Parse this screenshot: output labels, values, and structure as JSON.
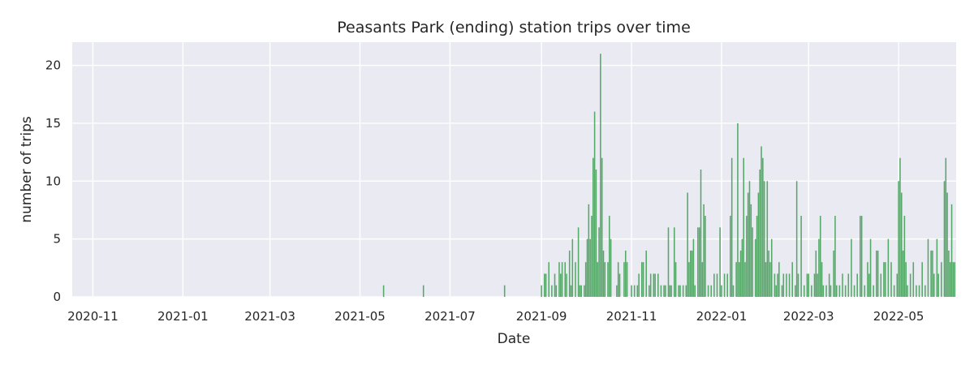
{
  "chart_data": {
    "type": "bar",
    "title": "Peasants Park (ending) station trips over time",
    "xlabel": "Date",
    "ylabel": "number of trips",
    "xlim": [
      "2020-10-18",
      "2022-06-09"
    ],
    "ylim": [
      0,
      22
    ],
    "grid": true,
    "legend": "none",
    "colors": {
      "bar": "#55a868",
      "plot_bg": "#eaeaf2",
      "grid": "#ffffff",
      "text": "#262626"
    },
    "x_ticks": [
      "2020-11-01",
      "2021-01-01",
      "2021-03-01",
      "2021-05-01",
      "2021-07-01",
      "2021-09-01",
      "2021-11-01",
      "2022-01-01",
      "2022-03-01",
      "2022-05-01"
    ],
    "x_tick_labels": [
      "2020-11",
      "2021-01",
      "2021-03",
      "2021-05",
      "2021-07",
      "2021-09",
      "2021-11",
      "2022-01",
      "2022-03",
      "2022-05"
    ],
    "y_ticks": [
      0,
      5,
      10,
      15,
      20
    ],
    "y_tick_labels": [
      "0",
      "5",
      "10",
      "15",
      "20"
    ],
    "series": [
      {
        "points": [
          [
            "2021-05-17",
            1
          ],
          [
            "2021-06-13",
            1
          ],
          [
            "2021-08-07",
            1
          ],
          [
            "2021-09-01",
            1
          ],
          [
            "2021-09-03",
            2
          ],
          [
            "2021-09-04",
            2
          ],
          [
            "2021-09-06",
            3
          ],
          [
            "2021-09-08",
            1
          ],
          [
            "2021-09-10",
            2
          ],
          [
            "2021-09-11",
            1
          ],
          [
            "2021-09-13",
            3
          ],
          [
            "2021-09-14",
            2
          ],
          [
            "2021-09-15",
            3
          ],
          [
            "2021-09-17",
            3
          ],
          [
            "2021-09-18",
            2
          ],
          [
            "2021-09-20",
            4
          ],
          [
            "2021-09-21",
            1
          ],
          [
            "2021-09-22",
            5
          ],
          [
            "2021-09-24",
            3
          ],
          [
            "2021-09-26",
            6
          ],
          [
            "2021-09-27",
            1
          ],
          [
            "2021-09-28",
            1
          ],
          [
            "2021-09-30",
            1
          ],
          [
            "2021-10-01",
            3
          ],
          [
            "2021-10-02",
            5
          ],
          [
            "2021-10-03",
            8
          ],
          [
            "2021-10-04",
            5
          ],
          [
            "2021-10-05",
            7
          ],
          [
            "2021-10-06",
            12
          ],
          [
            "2021-10-07",
            16
          ],
          [
            "2021-10-08",
            11
          ],
          [
            "2021-10-09",
            3
          ],
          [
            "2021-10-10",
            6
          ],
          [
            "2021-10-11",
            21
          ],
          [
            "2021-10-12",
            12
          ],
          [
            "2021-10-13",
            4
          ],
          [
            "2021-10-14",
            3
          ],
          [
            "2021-10-16",
            3
          ],
          [
            "2021-10-17",
            7
          ],
          [
            "2021-10-18",
            5
          ],
          [
            "2021-10-22",
            1
          ],
          [
            "2021-10-23",
            3
          ],
          [
            "2021-10-24",
            2
          ],
          [
            "2021-10-27",
            3
          ],
          [
            "2021-10-28",
            4
          ],
          [
            "2021-10-29",
            3
          ],
          [
            "2021-11-01",
            1
          ],
          [
            "2021-11-03",
            1
          ],
          [
            "2021-11-05",
            1
          ],
          [
            "2021-11-06",
            2
          ],
          [
            "2021-11-08",
            3
          ],
          [
            "2021-11-09",
            3
          ],
          [
            "2021-11-11",
            4
          ],
          [
            "2021-11-13",
            1
          ],
          [
            "2021-11-14",
            2
          ],
          [
            "2021-11-16",
            2
          ],
          [
            "2021-11-17",
            2
          ],
          [
            "2021-11-19",
            2
          ],
          [
            "2021-11-21",
            1
          ],
          [
            "2021-11-23",
            1
          ],
          [
            "2021-11-24",
            1
          ],
          [
            "2021-11-26",
            6
          ],
          [
            "2021-11-27",
            1
          ],
          [
            "2021-11-28",
            1
          ],
          [
            "2021-11-30",
            6
          ],
          [
            "2021-12-01",
            3
          ],
          [
            "2021-12-03",
            1
          ],
          [
            "2021-12-04",
            1
          ],
          [
            "2021-12-06",
            1
          ],
          [
            "2021-12-08",
            1
          ],
          [
            "2021-12-09",
            9
          ],
          [
            "2021-12-10",
            3
          ],
          [
            "2021-12-11",
            4
          ],
          [
            "2021-12-12",
            4
          ],
          [
            "2021-12-13",
            5
          ],
          [
            "2021-12-14",
            1
          ],
          [
            "2021-12-16",
            6
          ],
          [
            "2021-12-17",
            6
          ],
          [
            "2021-12-18",
            11
          ],
          [
            "2021-12-19",
            3
          ],
          [
            "2021-12-20",
            8
          ],
          [
            "2021-12-21",
            7
          ],
          [
            "2021-12-23",
            1
          ],
          [
            "2021-12-25",
            1
          ],
          [
            "2021-12-27",
            2
          ],
          [
            "2021-12-29",
            2
          ],
          [
            "2021-12-31",
            6
          ],
          [
            "2022-01-01",
            1
          ],
          [
            "2022-01-03",
            2
          ],
          [
            "2022-01-05",
            2
          ],
          [
            "2022-01-07",
            7
          ],
          [
            "2022-01-08",
            12
          ],
          [
            "2022-01-09",
            1
          ],
          [
            "2022-01-11",
            3
          ],
          [
            "2022-01-12",
            15
          ],
          [
            "2022-01-13",
            3
          ],
          [
            "2022-01-14",
            4
          ],
          [
            "2022-01-15",
            5
          ],
          [
            "2022-01-16",
            12
          ],
          [
            "2022-01-17",
            3
          ],
          [
            "2022-01-18",
            7
          ],
          [
            "2022-01-19",
            9
          ],
          [
            "2022-01-20",
            10
          ],
          [
            "2022-01-21",
            8
          ],
          [
            "2022-01-22",
            6
          ],
          [
            "2022-01-24",
            5
          ],
          [
            "2022-01-25",
            7
          ],
          [
            "2022-01-26",
            9
          ],
          [
            "2022-01-27",
            11
          ],
          [
            "2022-01-28",
            13
          ],
          [
            "2022-01-29",
            12
          ],
          [
            "2022-01-30",
            10
          ],
          [
            "2022-01-31",
            3
          ],
          [
            "2022-02-01",
            10
          ],
          [
            "2022-02-02",
            4
          ],
          [
            "2022-02-03",
            3
          ],
          [
            "2022-02-04",
            5
          ],
          [
            "2022-02-06",
            2
          ],
          [
            "2022-02-07",
            1
          ],
          [
            "2022-02-08",
            2
          ],
          [
            "2022-02-09",
            3
          ],
          [
            "2022-02-11",
            1
          ],
          [
            "2022-02-12",
            2
          ],
          [
            "2022-02-14",
            2
          ],
          [
            "2022-02-16",
            2
          ],
          [
            "2022-02-18",
            3
          ],
          [
            "2022-02-20",
            1
          ],
          [
            "2022-02-21",
            10
          ],
          [
            "2022-02-22",
            2
          ],
          [
            "2022-02-24",
            7
          ],
          [
            "2022-02-26",
            1
          ],
          [
            "2022-02-28",
            2
          ],
          [
            "2022-03-01",
            2
          ],
          [
            "2022-03-03",
            1
          ],
          [
            "2022-03-05",
            2
          ],
          [
            "2022-03-06",
            4
          ],
          [
            "2022-03-07",
            2
          ],
          [
            "2022-03-08",
            5
          ],
          [
            "2022-03-09",
            7
          ],
          [
            "2022-03-10",
            3
          ],
          [
            "2022-03-11",
            1
          ],
          [
            "2022-03-13",
            1
          ],
          [
            "2022-03-15",
            2
          ],
          [
            "2022-03-16",
            1
          ],
          [
            "2022-03-18",
            4
          ],
          [
            "2022-03-19",
            7
          ],
          [
            "2022-03-20",
            1
          ],
          [
            "2022-03-22",
            1
          ],
          [
            "2022-03-24",
            2
          ],
          [
            "2022-03-26",
            1
          ],
          [
            "2022-03-28",
            2
          ],
          [
            "2022-03-30",
            5
          ],
          [
            "2022-04-01",
            1
          ],
          [
            "2022-04-03",
            2
          ],
          [
            "2022-04-05",
            7
          ],
          [
            "2022-04-06",
            7
          ],
          [
            "2022-04-08",
            1
          ],
          [
            "2022-04-10",
            3
          ],
          [
            "2022-04-11",
            2
          ],
          [
            "2022-04-12",
            5
          ],
          [
            "2022-04-14",
            1
          ],
          [
            "2022-04-16",
            4
          ],
          [
            "2022-04-17",
            4
          ],
          [
            "2022-04-19",
            2
          ],
          [
            "2022-04-21",
            3
          ],
          [
            "2022-04-22",
            3
          ],
          [
            "2022-04-24",
            5
          ],
          [
            "2022-04-26",
            3
          ],
          [
            "2022-04-28",
            1
          ],
          [
            "2022-04-30",
            2
          ],
          [
            "2022-05-01",
            10
          ],
          [
            "2022-05-02",
            12
          ],
          [
            "2022-05-03",
            9
          ],
          [
            "2022-05-04",
            4
          ],
          [
            "2022-05-05",
            7
          ],
          [
            "2022-05-06",
            3
          ],
          [
            "2022-05-07",
            1
          ],
          [
            "2022-05-09",
            2
          ],
          [
            "2022-05-11",
            3
          ],
          [
            "2022-05-13",
            1
          ],
          [
            "2022-05-15",
            1
          ],
          [
            "2022-05-17",
            3
          ],
          [
            "2022-05-19",
            1
          ],
          [
            "2022-05-21",
            5
          ],
          [
            "2022-05-23",
            4
          ],
          [
            "2022-05-24",
            4
          ],
          [
            "2022-05-25",
            2
          ],
          [
            "2022-05-27",
            5
          ],
          [
            "2022-05-28",
            2
          ],
          [
            "2022-05-30",
            3
          ],
          [
            "2022-06-01",
            10
          ],
          [
            "2022-06-02",
            12
          ],
          [
            "2022-06-03",
            9
          ],
          [
            "2022-06-04",
            4
          ],
          [
            "2022-06-05",
            3
          ],
          [
            "2022-06-06",
            8
          ],
          [
            "2022-06-07",
            3
          ],
          [
            "2022-06-08",
            3
          ]
        ]
      }
    ]
  }
}
